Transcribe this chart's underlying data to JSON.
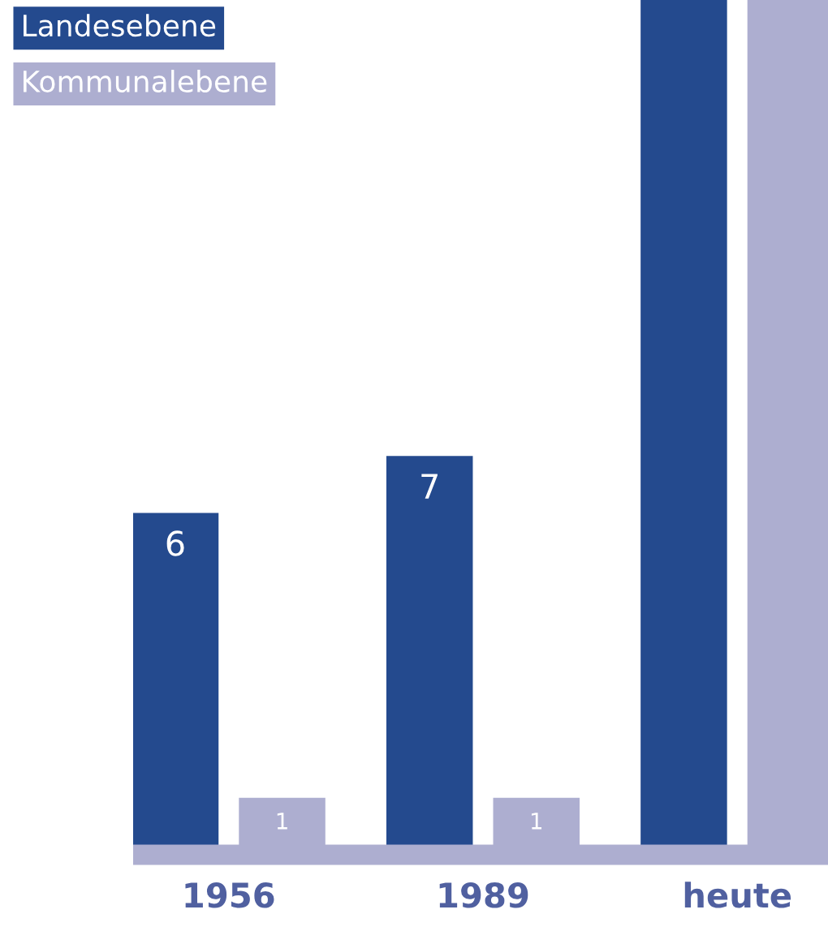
{
  "chart_data": {
    "type": "bar",
    "categories": [
      "1956",
      "1989",
      "heute"
    ],
    "series": [
      {
        "name": "Landesebene",
        "color": "#244a8e",
        "values": [
          6,
          7,
          15
        ],
        "value_labels": [
          "6",
          "7",
          null
        ]
      },
      {
        "name": "Kommunalebene",
        "color": "#adaed0",
        "values": [
          1,
          1,
          15
        ],
        "value_labels": [
          "1",
          "1",
          null
        ]
      }
    ],
    "relative": false,
    "ylim": [
      0,
      15
    ],
    "legend": "top left",
    "tick_labels": "x",
    "grid": false
  }
}
